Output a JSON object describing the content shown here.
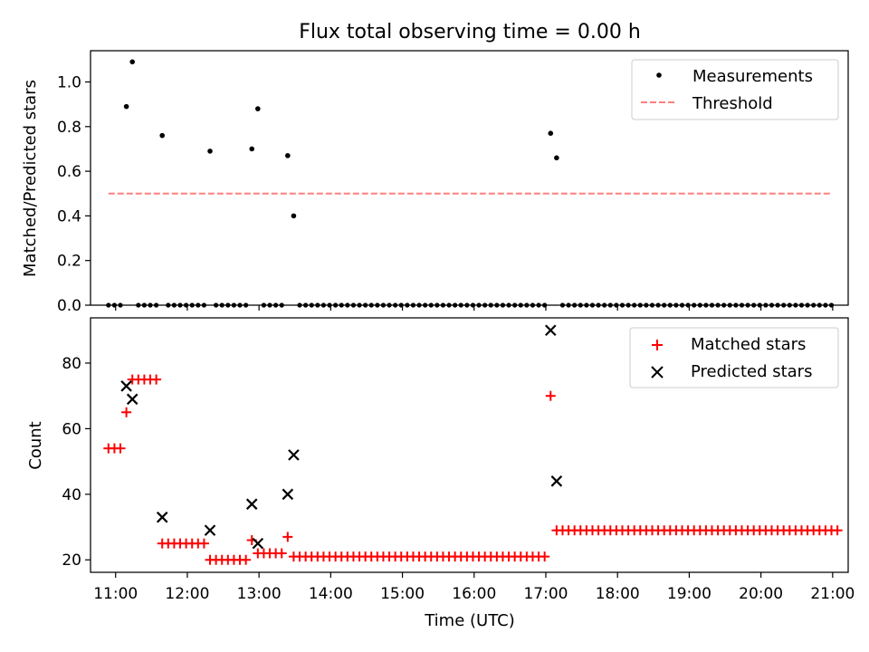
{
  "title": "Flux total observing time = 0.00 h",
  "chart_data": [
    {
      "type": "scatter",
      "ylabel": "Matched/Predicted stars",
      "xlabel": "",
      "x_unit": "time (UTC)",
      "xlim": [
        "10:39",
        "21:13"
      ],
      "ylim": [
        0,
        1.14
      ],
      "y_ticks": [
        0.0,
        0.2,
        0.4,
        0.6,
        0.8,
        1.0
      ],
      "y_tick_labels": [
        "0.0",
        "0.2",
        "0.4",
        "0.6",
        "0.8",
        "1.0"
      ],
      "x_tick_labels_shown": false,
      "legend_position": "top-right",
      "series": [
        {
          "name": "Measurements",
          "marker": "dot",
          "color": "#000000",
          "points": [
            [
              "11:09",
              0.89
            ],
            [
              "11:14",
              1.09
            ],
            [
              "11:39",
              0.76
            ],
            [
              "12:19",
              0.69
            ],
            [
              "12:54",
              0.7
            ],
            [
              "12:59",
              0.88
            ],
            [
              "13:24",
              0.67
            ],
            [
              "13:29",
              0.4
            ],
            [
              "17:04",
              0.77
            ],
            [
              "17:09",
              0.66
            ]
          ],
          "zero_runs": [
            {
              "start": "10:54",
              "end": "11:04",
              "step_min": 5
            },
            {
              "start": "11:19",
              "end": "11:34",
              "step_min": 5
            },
            {
              "start": "11:44",
              "end": "12:14",
              "step_min": 5
            },
            {
              "start": "12:24",
              "end": "12:49",
              "step_min": 5
            },
            {
              "start": "13:04",
              "end": "13:19",
              "step_min": 5
            },
            {
              "start": "13:34",
              "end": "16:59",
              "step_min": 5
            },
            {
              "start": "17:14",
              "end": "21:00",
              "step_min": 5
            }
          ]
        },
        {
          "name": "Threshold",
          "line": "dashed",
          "color": "#ff7f7f",
          "x_range": [
            "10:54",
            "21:00"
          ],
          "value": 0.5
        }
      ]
    },
    {
      "type": "scatter",
      "ylabel": "Count",
      "xlabel": "Time (UTC)",
      "x_unit": "time (UTC)",
      "xlim": [
        "10:39",
        "21:13"
      ],
      "ylim": [
        16.2,
        93.8
      ],
      "y_ticks": [
        20,
        40,
        60,
        80
      ],
      "y_tick_labels": [
        "20",
        "40",
        "60",
        "80"
      ],
      "x_ticks": [
        "11:00",
        "12:00",
        "13:00",
        "14:00",
        "15:00",
        "16:00",
        "17:00",
        "18:00",
        "19:00",
        "20:00",
        "21:00"
      ],
      "x_tick_labels": [
        "11:00",
        "12:00",
        "13:00",
        "14:00",
        "15:00",
        "16:00",
        "17:00",
        "18:00",
        "19:00",
        "20:00",
        "21:00"
      ],
      "legend_position": "top-right",
      "series": [
        {
          "name": "Matched stars",
          "marker": "plus",
          "color": "#ff0000",
          "runs": [
            {
              "start": "10:54",
              "end": "11:04",
              "step_min": 5,
              "value": 54
            },
            {
              "start": "11:09",
              "end": "11:09",
              "step_min": 5,
              "value": 65
            },
            {
              "start": "11:14",
              "end": "11:34",
              "step_min": 5,
              "value": 75
            },
            {
              "start": "11:39",
              "end": "12:14",
              "step_min": 5,
              "value": 25
            },
            {
              "start": "12:19",
              "end": "12:49",
              "step_min": 5,
              "value": 20
            },
            {
              "start": "12:54",
              "end": "12:54",
              "step_min": 5,
              "value": 26
            },
            {
              "start": "12:59",
              "end": "13:19",
              "step_min": 5,
              "value": 22
            },
            {
              "start": "13:24",
              "end": "13:24",
              "step_min": 5,
              "value": 27
            },
            {
              "start": "13:29",
              "end": "16:59",
              "step_min": 5,
              "value": 21
            },
            {
              "start": "17:04",
              "end": "17:04",
              "step_min": 5,
              "value": 70
            },
            {
              "start": "17:09",
              "end": "21:04",
              "step_min": 5,
              "value": 29
            }
          ]
        },
        {
          "name": "Predicted stars",
          "marker": "x",
          "color": "#000000",
          "points": [
            [
              "11:09",
              73
            ],
            [
              "11:14",
              69
            ],
            [
              "11:39",
              33
            ],
            [
              "12:19",
              29
            ],
            [
              "12:54",
              37
            ],
            [
              "12:59",
              25
            ],
            [
              "13:24",
              40
            ],
            [
              "13:29",
              52
            ],
            [
              "17:04",
              90
            ],
            [
              "17:09",
              44
            ]
          ]
        }
      ]
    }
  ]
}
